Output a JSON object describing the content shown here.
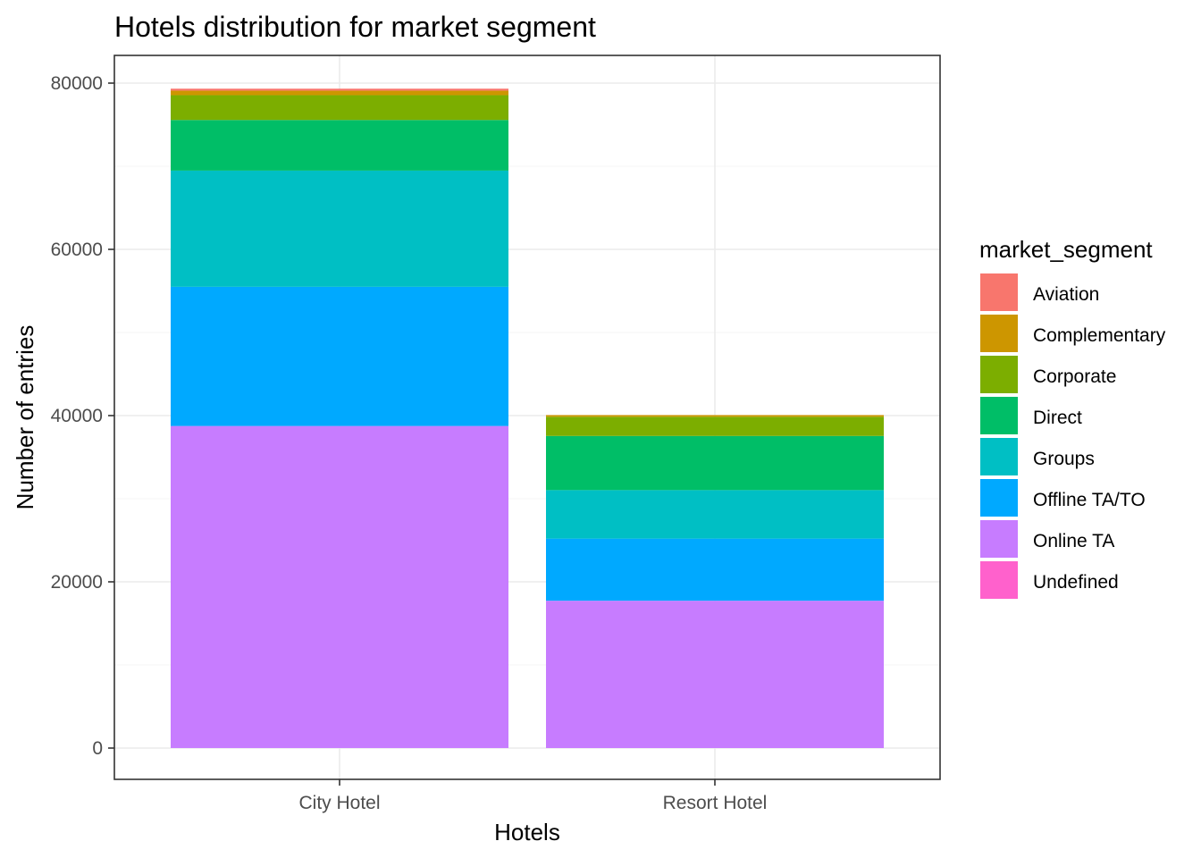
{
  "chart_data": {
    "type": "bar",
    "stacked": true,
    "title": "Hotels distribution for market segment",
    "xlabel": "Hotels",
    "ylabel": "Number of entries",
    "categories": [
      "City Hotel",
      "Resort Hotel"
    ],
    "ylim": [
      0,
      80000
    ],
    "yticks": [
      0,
      20000,
      40000,
      60000,
      80000
    ],
    "grid": true,
    "legend": {
      "title": "market_segment",
      "position": "right"
    },
    "series": [
      {
        "name": "Aviation",
        "color": "#F8766D",
        "values": [
          237,
          0
        ]
      },
      {
        "name": "Complementary",
        "color": "#CD9600",
        "values": [
          542,
          201
        ]
      },
      {
        "name": "Corporate",
        "color": "#7CAE00",
        "values": [
          2986,
          2309
        ]
      },
      {
        "name": "Direct",
        "color": "#00BE67",
        "values": [
          6093,
          6513
        ]
      },
      {
        "name": "Groups",
        "color": "#00BFC4",
        "values": [
          13975,
          5836
        ]
      },
      {
        "name": "Offline TA/TO",
        "color": "#00A9FF",
        "values": [
          16747,
          7472
        ]
      },
      {
        "name": "Online TA",
        "color": "#C77CFF",
        "values": [
          38748,
          17729
        ]
      },
      {
        "name": "Undefined",
        "color": "#FF61CC",
        "values": [
          2,
          0
        ]
      }
    ]
  }
}
